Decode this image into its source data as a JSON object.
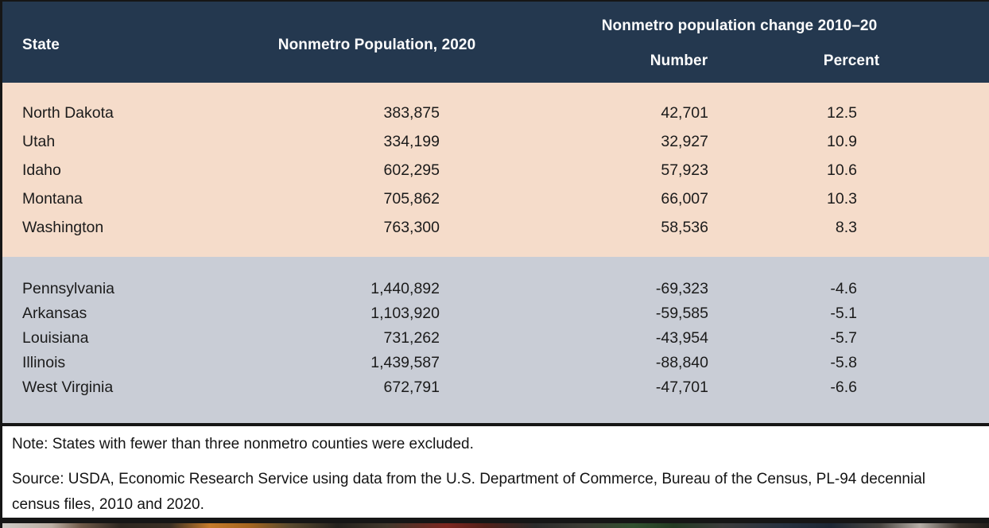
{
  "colors": {
    "header_bg": "#24384F",
    "gainers_bg": "#F5DCCA",
    "decliners_bg": "#C9CDD6",
    "border_ink": "#161616",
    "header_text": "#FDFDFD",
    "body_text": "#1B1B1B"
  },
  "table": {
    "header": {
      "state": "State",
      "population": "Nonmetro Population, 2020",
      "change_group": "Nonmetro population change 2010–20",
      "number": "Number",
      "percent": "Percent"
    },
    "sections": [
      {
        "name": "gainers",
        "rows": [
          {
            "state": "North Dakota",
            "population": "383,875",
            "number": "42,701",
            "percent": "12.5"
          },
          {
            "state": "Utah",
            "population": "334,199",
            "number": "32,927",
            "percent": "10.9"
          },
          {
            "state": "Idaho",
            "population": "602,295",
            "number": "57,923",
            "percent": "10.6"
          },
          {
            "state": "Montana",
            "population": "705,862",
            "number": "66,007",
            "percent": "10.3"
          },
          {
            "state": "Washington",
            "population": "763,300",
            "number": "58,536",
            "percent": "8.3"
          }
        ]
      },
      {
        "name": "decliners",
        "rows": [
          {
            "state": "Pennsylvania",
            "population": "1,440,892",
            "number": "-69,323",
            "percent": "-4.6"
          },
          {
            "state": "Arkansas",
            "population": "1,103,920",
            "number": "-59,585",
            "percent": "-5.1"
          },
          {
            "state": "Louisiana",
            "population": "731,262",
            "number": "-43,954",
            "percent": "-5.7"
          },
          {
            "state": "Illinois",
            "population": "1,439,587",
            "number": "-88,840",
            "percent": "-5.8"
          },
          {
            "state": "West Virginia",
            "population": "672,791",
            "number": "-47,701",
            "percent": "-6.6"
          }
        ]
      }
    ],
    "note": "Note: States with fewer than three nonmetro counties were excluded.",
    "source": "Source: USDA, Economic Research Service using data from the U.S. Department of Commerce, Bureau of the Census, PL-94 decennial census files, 2010 and 2020."
  },
  "chart_data": {
    "type": "table",
    "title": "Nonmetro population change 2010–20",
    "columns": [
      "State",
      "Nonmetro Population, 2020",
      "Number",
      "Percent"
    ],
    "rows": [
      [
        "North Dakota",
        383875,
        42701,
        12.5
      ],
      [
        "Utah",
        334199,
        32927,
        10.9
      ],
      [
        "Idaho",
        602295,
        57923,
        10.6
      ],
      [
        "Montana",
        705862,
        66007,
        10.3
      ],
      [
        "Washington",
        763300,
        58536,
        8.3
      ],
      [
        "Pennsylvania",
        1440892,
        -69323,
        -4.6
      ],
      [
        "Arkansas",
        1103920,
        -59585,
        -5.1
      ],
      [
        "Louisiana",
        731262,
        -43954,
        -5.7
      ],
      [
        "Illinois",
        1439587,
        -88840,
        -5.8
      ],
      [
        "West Virginia",
        672791,
        -47701,
        -6.6
      ]
    ],
    "layout_hints": {
      "group_1": "top five states by percent gain (peach rows)",
      "group_2": "bottom five states by percent loss (gray rows)",
      "number_alignment": "right"
    }
  }
}
